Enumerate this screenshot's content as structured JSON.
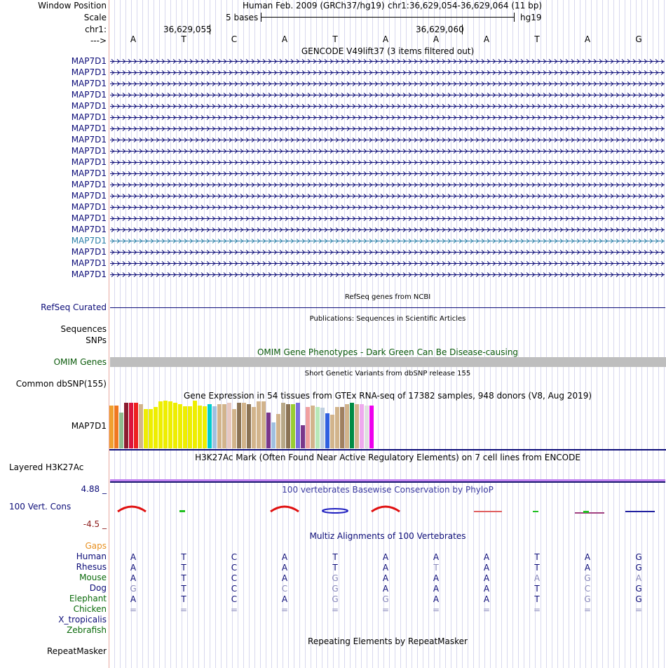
{
  "header": {
    "window_position_label": "Window Position",
    "scale_label": "Scale",
    "chr_label": "chr1:",
    "strand_label": "--->",
    "assembly_text": "Human Feb. 2009 (GRCh37/hg19)",
    "position_text": "chr1:36,629,054-36,629,064 (11 bp)",
    "scale_text": "5 bases",
    "db_text": "hg19",
    "coord_1": "36,629,055",
    "coord_2": "36,629,060",
    "bases": [
      "A",
      "T",
      "C",
      "A",
      "T",
      "A",
      "A",
      "A",
      "T",
      "A",
      "G"
    ]
  },
  "gencode": {
    "title": "GENCODE V49lift37 (3 items filtered out)",
    "items": [
      {
        "label": "MAP7D1",
        "highlight": false
      },
      {
        "label": "MAP7D1",
        "highlight": false
      },
      {
        "label": "MAP7D1",
        "highlight": false
      },
      {
        "label": "MAP7D1",
        "highlight": false
      },
      {
        "label": "MAP7D1",
        "highlight": false
      },
      {
        "label": "MAP7D1",
        "highlight": false
      },
      {
        "label": "MAP7D1",
        "highlight": false
      },
      {
        "label": "MAP7D1",
        "highlight": false
      },
      {
        "label": "MAP7D1",
        "highlight": false
      },
      {
        "label": "MAP7D1",
        "highlight": false
      },
      {
        "label": "MAP7D1",
        "highlight": false
      },
      {
        "label": "MAP7D1",
        "highlight": false
      },
      {
        "label": "MAP7D1",
        "highlight": false
      },
      {
        "label": "MAP7D1",
        "highlight": false
      },
      {
        "label": "MAP7D1",
        "highlight": false
      },
      {
        "label": "MAP7D1",
        "highlight": false
      },
      {
        "label": "MAP7D1",
        "highlight": true
      },
      {
        "label": "MAP7D1",
        "highlight": false
      },
      {
        "label": "MAP7D1",
        "highlight": false
      },
      {
        "label": "MAP7D1",
        "highlight": false
      }
    ],
    "color": "#0c0c78",
    "highlight_color": "#2a7fa8"
  },
  "refseq": {
    "title": "RefSeq genes from NCBI",
    "label": "RefSeq Curated"
  },
  "publications": {
    "title": "Publications: Sequences in Scientific Articles",
    "label1": "Sequences",
    "label2": "SNPs"
  },
  "omim": {
    "title": "OMIM Gene Phenotypes - Dark Green Can Be Disease-causing",
    "label": "OMIM Genes",
    "color": "#0a5a0a"
  },
  "dbsnp": {
    "title": "Short Genetic Variants from dbSNP release 155",
    "label": "Common dbSNP(155)"
  },
  "gtex": {
    "title": "Gene Expression in 54 tissues from GTEx RNA-seq of 17382 samples, 948 donors (V8, Aug 2019)",
    "label": "MAP7D1",
    "values": [
      0.89,
      0.89,
      0.75,
      0.95,
      0.95,
      0.95,
      0.93,
      0.82,
      0.82,
      0.87,
      0.98,
      1.0,
      0.98,
      0.95,
      0.93,
      0.88,
      0.88,
      1.0,
      0.9,
      0.88,
      0.93,
      0.88,
      0.93,
      0.93,
      0.95,
      0.83,
      0.95,
      0.95,
      0.93,
      0.87,
      0.98,
      0.98,
      0.75,
      0.54,
      0.72,
      0.95,
      0.93,
      0.93,
      0.95,
      0.48,
      0.87,
      0.9,
      0.87,
      0.85,
      0.73,
      0.7,
      0.87,
      0.87,
      0.93,
      0.95,
      0.93,
      0.92,
      0.9,
      0.9
    ],
    "colors": [
      "#f0a030",
      "#f07820",
      "#8fbc8f",
      "#8b1c30",
      "#dc143c",
      "#ee2020",
      "#d2b48c",
      "#eeee00",
      "#eeee00",
      "#eeee00",
      "#eeee00",
      "#eeee00",
      "#eeee00",
      "#eeee00",
      "#eeee00",
      "#eeee00",
      "#eeee00",
      "#eeee00",
      "#eeee00",
      "#eeee00",
      "#00cdcd",
      "#a0c0e0",
      "#d2b48c",
      "#d2b48c",
      "#e8c8c0",
      "#d2b48c",
      "#8b7355",
      "#d2b48c",
      "#8b7355",
      "#d2b48c",
      "#d2b48c",
      "#d2b48c",
      "#7a378b",
      "#a0c0e0",
      "#d2b48c",
      "#b8a888",
      "#8b7355",
      "#9acd32",
      "#7a6fdd",
      "#7a378b",
      "#f0a0a0",
      "#d2b48c",
      "#b8e8b8",
      "#c0d0e0",
      "#3060e0",
      "#d2b48c",
      "#d2b48c",
      "#a08060",
      "#d2b48c",
      "#008b45",
      "#d2b48c",
      "#eeaaee",
      "#e0e0e0",
      "#ee00ee"
    ]
  },
  "h3k27ac": {
    "title": "H3K27Ac Mark (Often Found Near Active Regulatory Elements) on 7 cell lines from ENCODE",
    "label": "Layered H3K27Ac"
  },
  "phylop": {
    "title": "100 vertebrates Basewise Conservation by PhyloP",
    "label": "100 Vert. Cons",
    "max": "4.88 _",
    "min": "-4.5 _"
  },
  "multiz": {
    "title": "Multiz Alignments of 100 Vertebrates",
    "rows": [
      {
        "label": "Gaps",
        "color": "#e89020",
        "bases": [
          "",
          "",
          "",
          "",
          "",
          "",
          "",
          "",
          "",
          "",
          ""
        ]
      },
      {
        "label": "Human",
        "color": "#0c0c78",
        "bases": [
          "A",
          "T",
          "C",
          "A",
          "T",
          "A",
          "A",
          "A",
          "T",
          "A",
          "G"
        ]
      },
      {
        "label": "Rhesus",
        "color": "#0c0c78",
        "bases": [
          "A",
          "T",
          "C",
          "A",
          "T",
          "A",
          "T",
          "A",
          "T",
          "A",
          "G"
        ]
      },
      {
        "label": "Mouse",
        "color": "#0a6a0a",
        "bases": [
          "A",
          "T",
          "C",
          "A",
          "G",
          "A",
          "A",
          "A",
          "A",
          "G",
          "A"
        ]
      },
      {
        "label": "Dog",
        "color": "#0c0c78",
        "bases": [
          "G",
          "T",
          "C",
          "C",
          "G",
          "A",
          "A",
          "A",
          "T",
          "C",
          "G"
        ]
      },
      {
        "label": "Elephant",
        "color": "#0a6a0a",
        "bases": [
          "A",
          "T",
          "C",
          "A",
          "G",
          "G",
          "A",
          "A",
          "T",
          "G",
          "G"
        ]
      },
      {
        "label": "Chicken",
        "color": "#0a6a0a",
        "bases": [
          "=",
          "=",
          "=",
          "=",
          "=",
          "=",
          "=",
          "=",
          "=",
          "=",
          "="
        ]
      },
      {
        "label": "X_tropicalis",
        "color": "#0c0c78",
        "bases": [
          "",
          "",
          "",
          "",
          "",
          "",
          "",
          "",
          "",
          "",
          ""
        ]
      },
      {
        "label": "Zebrafish",
        "color": "#0a6a0a",
        "bases": [
          "",
          "",
          "",
          "",
          "",
          "",
          "",
          "",
          "",
          "",
          ""
        ]
      }
    ],
    "faded": [
      [],
      [],
      [
        6
      ],
      [
        4,
        8,
        9,
        10
      ],
      [
        0,
        3,
        4,
        9
      ],
      [
        4,
        5,
        9
      ],
      [
        0,
        1,
        2,
        3,
        4,
        5,
        6,
        7,
        8,
        9,
        10
      ],
      [],
      []
    ]
  },
  "repeatmasker": {
    "title": "Repeating Elements by RepeatMasker",
    "label": "RepeatMasker"
  }
}
